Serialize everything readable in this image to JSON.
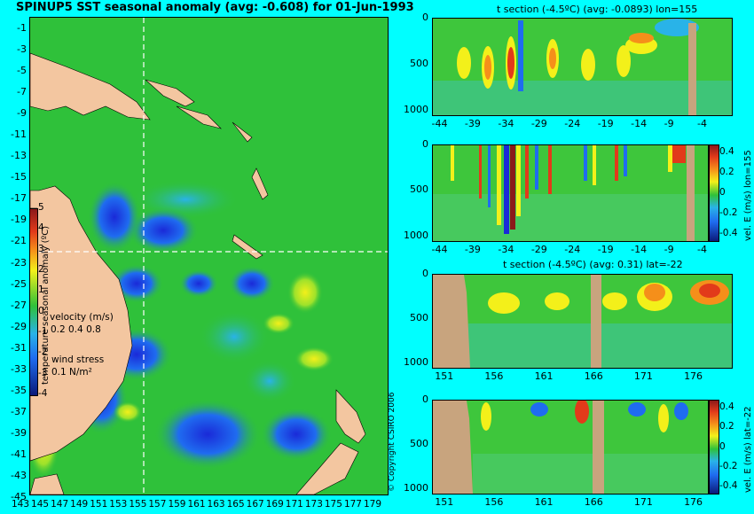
{
  "header": {
    "title": "SPINUP5 SST seasonal anomaly (avg: -0.608) for 01-Jun-1993"
  },
  "map": {
    "lat_labels": [
      "-1",
      "-3",
      "-5",
      "-7",
      "-9",
      "-11",
      "-13",
      "-15",
      "-17",
      "-19",
      "-21",
      "-23",
      "-25",
      "-27",
      "-29",
      "-31",
      "-33",
      "-35",
      "-37",
      "-39",
      "-41",
      "-43",
      "-45"
    ],
    "lon_labels": [
      "143",
      "145",
      "147",
      "149",
      "151",
      "153",
      "155",
      "157",
      "159",
      "161",
      "163",
      "165",
      "167",
      "169",
      "171",
      "173",
      "175",
      "177",
      "179"
    ],
    "colorbar": {
      "label": "temperature seasonal anomaly (ºC)",
      "ticks": [
        "5",
        "4",
        "3",
        "2",
        "1",
        "0",
        "-1",
        "-2",
        "-3",
        "-4"
      ]
    },
    "velocity_legend": {
      "label": "velocity (m/s)",
      "scale": "0.2 0.4 0.8"
    },
    "wind_legend": {
      "label": "wind stress",
      "scale": "0.1 N/m²"
    }
  },
  "sections": [
    {
      "title": "t section (-4.5ºC) (avg: -0.0893) lon=155",
      "x_ticks": [
        "-44",
        "-39",
        "-34",
        "-29",
        "-24",
        "-19",
        "-14",
        "-9",
        "-4"
      ],
      "y_ticks": [
        "0",
        "500",
        "1000"
      ]
    },
    {
      "title": "",
      "x_ticks": [
        "-44",
        "-39",
        "-34",
        "-29",
        "-24",
        "-19",
        "-14",
        "-9",
        "-4"
      ],
      "y_ticks": [
        "0",
        "500",
        "1000"
      ],
      "colorbar": {
        "label": "vel. E (m/s) lon=155",
        "ticks": [
          "0.4",
          "0.2",
          "0",
          "-0.2",
          "-0.4"
        ]
      }
    },
    {
      "title": "t section (-4.5ºC) (avg: 0.31) lat=-22",
      "x_ticks": [
        "151",
        "156",
        "161",
        "166",
        "171",
        "176"
      ],
      "y_ticks": [
        "0",
        "500",
        "1000"
      ]
    },
    {
      "title": "",
      "x_ticks": [
        "151",
        "156",
        "161",
        "166",
        "171",
        "176"
      ],
      "y_ticks": [
        "0",
        "500",
        "1000"
      ],
      "colorbar": {
        "label": "vel. E (m/s) lat=-22",
        "ticks": [
          "0.4",
          "0.2",
          "0",
          "-0.2",
          "-0.4"
        ]
      }
    }
  ],
  "copyright": "© Copyright CSIRO 2006",
  "chart_data": [
    {
      "type": "heatmap",
      "title": "SPINUP5 SST seasonal anomaly (avg: -0.608) for 01-Jun-1993",
      "xlim": [
        143,
        180
      ],
      "ylim": [
        -45,
        0
      ],
      "color_range": [
        -4,
        5
      ],
      "colorbar_label": "temperature seasonal anomaly (ºC)"
    },
    {
      "type": "heatmap",
      "title": "t section (-4.5ºC) (avg: -0.0893) lon=155",
      "xlim": [
        -45,
        0
      ],
      "ylim": [
        1050,
        0
      ]
    },
    {
      "type": "heatmap",
      "xlim": [
        -45,
        0
      ],
      "ylim": [
        1050,
        0
      ],
      "color_range": [
        -0.4,
        0.4
      ],
      "colorbar_label": "vel. E (m/s) lon=155"
    },
    {
      "type": "heatmap",
      "title": "t section (-4.5ºC) (avg: 0.31) lat=-22",
      "xlim": [
        150,
        180
      ],
      "ylim": [
        1050,
        0
      ]
    },
    {
      "type": "heatmap",
      "xlim": [
        150,
        180
      ],
      "ylim": [
        1050,
        0
      ],
      "color_range": [
        -0.4,
        0.4
      ],
      "colorbar_label": "vel. E (m/s) lat=-22"
    }
  ]
}
